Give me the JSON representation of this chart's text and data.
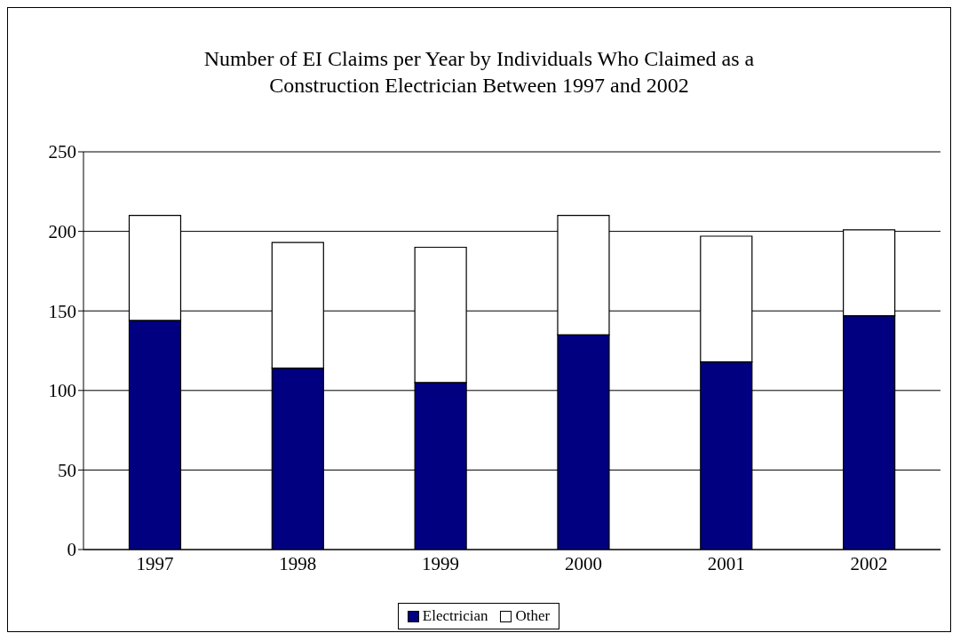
{
  "chart_data": {
    "type": "bar",
    "title": "Number of EI Claims per Year by Individuals Who Claimed as a Construction Electrician Between 1997 and 2002",
    "categories": [
      "1997",
      "1998",
      "1999",
      "2000",
      "2001",
      "2002"
    ],
    "series": [
      {
        "name": "Electrician",
        "color": "#000080",
        "values": [
          144,
          114,
          105,
          135,
          118,
          147
        ]
      },
      {
        "name": "Other",
        "color": "#ffffff",
        "values": [
          66,
          79,
          85,
          75,
          79,
          54
        ]
      }
    ],
    "stacked": true,
    "ylim": [
      0,
      250
    ],
    "yticks": [
      0,
      50,
      100,
      150,
      200,
      250
    ],
    "grid": "y",
    "legend": "bottom"
  }
}
